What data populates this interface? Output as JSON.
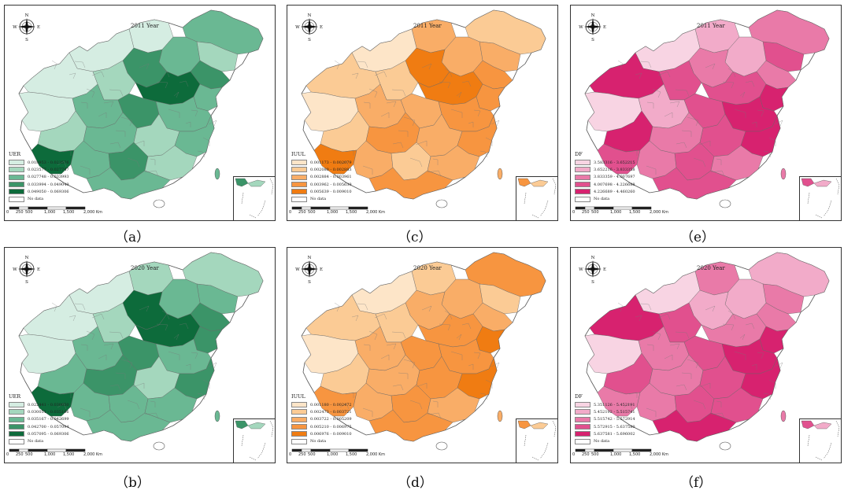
{
  "panels": [
    {
      "id": "a",
      "year": "2011 Year",
      "legend_title": "UER",
      "palette": "green",
      "legend": [
        "0.018953 - 0.023576",
        "0.023577 - 0.027747",
        "0.027748 - 0.033993",
        "0.033994 - 0.049049",
        "0.049050 - 0.069306"
      ],
      "caption": "（a）"
    },
    {
      "id": "c",
      "year": "2011 Year",
      "legend_title": "IUUL",
      "palette": "orange",
      "legend": [
        "0.001173 - 0.002079",
        "0.002080 - 0.002883",
        "0.002884 - 0.003961",
        "0.003962 - 0.005639",
        "0.005639 - 0.009010"
      ],
      "caption": "（c）"
    },
    {
      "id": "e",
      "year": "2011 Year",
      "legend_title": "DF",
      "palette": "pink",
      "legend": [
        "3.583316 - 3.652215",
        "3.652216 - 3.833358",
        "3.833359 - 4.007697",
        "4.007698 - 4.226688",
        "4.226689 - 4.460260"
      ],
      "caption": "（e）"
    },
    {
      "id": "b",
      "year": "2020 Year",
      "legend_title": "UER",
      "palette": "green",
      "legend": [
        "0.022441 - 0.030050",
        "0.030051 - 0.035166",
        "0.035167 - 0.042699",
        "0.042700 - 0.057094",
        "0.057095 - 0.069306"
      ],
      "caption": "（b）"
    },
    {
      "id": "d",
      "year": "2020 Year",
      "legend_title": "IUUL",
      "palette": "orange",
      "legend": [
        "0.001180 - 0.002472",
        "0.002473 - 0.003721",
        "0.003722 - 0.005209",
        "0.005210 - 0.006975",
        "0.006976 - 0.009010"
      ],
      "caption": "（d）"
    },
    {
      "id": "f",
      "year": "2020 Year",
      "legend_title": "DF",
      "palette": "pink",
      "legend": [
        "5.351126 - 5.452191",
        "5.452192 - 5.515741",
        "5.515742 - 5.572914",
        "5.572915 - 5.637580",
        "5.637581 - 5.696002"
      ],
      "caption": "（f）"
    }
  ],
  "no_data_label": "No data",
  "scale_labels": [
    "0",
    "250",
    "500",
    "1,000",
    "1,500",
    "2,000 Km"
  ],
  "compass": {
    "n": "N",
    "s": "S",
    "e": "E",
    "w": "W"
  },
  "palettes": {
    "green": [
      "#d5ede2",
      "#a4d7bd",
      "#6ab893",
      "#3b9468",
      "#0d6b3b"
    ],
    "orange": [
      "#fde5c8",
      "#fbcb95",
      "#f9ad67",
      "#f79540",
      "#f07c12"
    ],
    "pink": [
      "#f8d4e3",
      "#f2abc9",
      "#e97aa8",
      "#e1508e",
      "#d7226f"
    ]
  }
}
